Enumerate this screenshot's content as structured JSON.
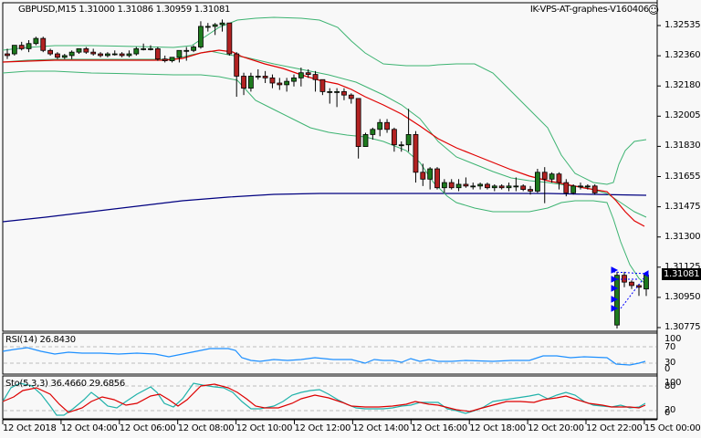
{
  "header": {
    "symbol_line": "GBPUSD,M15  1.31000 1.31086 1.30959 1.31081",
    "server_label": "IK-VPS-AT-graphes-V160406",
    "smiley_icon": "☺"
  },
  "price_axis": {
    "ticks": [
      "1.32535",
      "1.32360",
      "1.32180",
      "1.32005",
      "1.31830",
      "1.31655",
      "1.31475",
      "1.31300",
      "1.31125",
      "1.30950",
      "1.30775"
    ],
    "current_price": "1.31081"
  },
  "rsi": {
    "label": "RSI(14) 26.8430",
    "ticks": [
      "100",
      "70",
      "30",
      "0"
    ]
  },
  "stoch": {
    "label": "Sto(5,3,3) 36.4660 29.6856",
    "ticks": [
      "100",
      "80",
      "20",
      "0"
    ]
  },
  "time_axis": {
    "ticks": [
      "12 Oct 2018",
      "12 Oct 04:00",
      "12 Oct 06:00",
      "12 Oct 08:00",
      "12 Oct 10:00",
      "12 Oct 12:00",
      "12 Oct 14:00",
      "12 Oct 16:00",
      "12 Oct 18:00",
      "12 Oct 20:00",
      "12 Oct 22:00",
      "15 Oct 00:00"
    ]
  },
  "colors": {
    "background": "#f8f8f8",
    "bull": "#1e7a1e",
    "bear": "#b22222",
    "ma_fast": "#e00000",
    "bollinger": "#3cb371",
    "ma_slow": "#000080",
    "rsi_line": "#1e90ff",
    "stoch_main": "#20b2aa",
    "stoch_signal": "#dd0000",
    "fibo_marks": "#0000ff"
  },
  "chart_data": {
    "type": "candlestick",
    "title": "GBPUSD,M15",
    "ohlc_last": {
      "open": 1.31,
      "high": 1.31086,
      "low": 1.30959,
      "close": 1.31081
    },
    "ylim": [
      1.3074,
      1.3264
    ],
    "candles": [
      [
        1.3237,
        1.324,
        1.3234,
        1.3236
      ],
      [
        1.3237,
        1.3242,
        1.3236,
        1.3242
      ],
      [
        1.3242,
        1.3244,
        1.3239,
        1.324
      ],
      [
        1.324,
        1.3245,
        1.3238,
        1.3243
      ],
      [
        1.3243,
        1.3247,
        1.3242,
        1.3246
      ],
      [
        1.3246,
        1.3247,
        1.3238,
        1.3239
      ],
      [
        1.3239,
        1.324,
        1.3236,
        1.3237
      ],
      [
        1.3237,
        1.3238,
        1.3234,
        1.3235
      ],
      [
        1.3235,
        1.3237,
        1.3234,
        1.3236
      ],
      [
        1.3236,
        1.3239,
        1.3234,
        1.3238
      ],
      [
        1.3238,
        1.324,
        1.3237,
        1.324
      ],
      [
        1.324,
        1.3241,
        1.3237,
        1.3238
      ],
      [
        1.3238,
        1.324,
        1.3236,
        1.3237
      ],
      [
        1.3237,
        1.3238,
        1.3235,
        1.3236
      ],
      [
        1.3236,
        1.3238,
        1.3235,
        1.3237
      ],
      [
        1.3237,
        1.3239,
        1.3236,
        1.3237
      ],
      [
        1.3237,
        1.3238,
        1.3235,
        1.3236
      ],
      [
        1.3236,
        1.3239,
        1.3235,
        1.3237
      ],
      [
        1.3237,
        1.3241,
        1.3236,
        1.324
      ],
      [
        1.324,
        1.3243,
        1.3239,
        1.324
      ],
      [
        1.324,
        1.3242,
        1.3239,
        1.324
      ],
      [
        1.324,
        1.3241,
        1.3233,
        1.3234
      ],
      [
        1.3234,
        1.3236,
        1.3232,
        1.3233
      ],
      [
        1.3233,
        1.3235,
        1.3232,
        1.3235
      ],
      [
        1.3235,
        1.3239,
        1.3232,
        1.3239
      ],
      [
        1.3239,
        1.3241,
        1.3233,
        1.3239
      ],
      [
        1.3239,
        1.3242,
        1.3238,
        1.3241
      ],
      [
        1.3241,
        1.3256,
        1.324,
        1.3253
      ],
      [
        1.3253,
        1.3255,
        1.325,
        1.3253
      ],
      [
        1.3253,
        1.3255,
        1.3248,
        1.3254
      ],
      [
        1.3254,
        1.3257,
        1.325,
        1.3255
      ],
      [
        1.3255,
        1.3255,
        1.3236,
        1.3237
      ],
      [
        1.3237,
        1.3238,
        1.3212,
        1.3224
      ],
      [
        1.3224,
        1.3226,
        1.3213,
        1.3217
      ],
      [
        1.3217,
        1.3226,
        1.3215,
        1.3224
      ],
      [
        1.3224,
        1.3228,
        1.3222,
        1.3224
      ],
      [
        1.3224,
        1.3227,
        1.322,
        1.3223
      ],
      [
        1.3223,
        1.3225,
        1.3217,
        1.322
      ],
      [
        1.322,
        1.3223,
        1.3216,
        1.3219
      ],
      [
        1.3219,
        1.3223,
        1.3215,
        1.3221
      ],
      [
        1.3221,
        1.3225,
        1.3218,
        1.3223
      ],
      [
        1.3223,
        1.3229,
        1.3218,
        1.3226
      ],
      [
        1.3226,
        1.3228,
        1.3223,
        1.3225
      ],
      [
        1.3225,
        1.3227,
        1.3215,
        1.3222
      ],
      [
        1.3222,
        1.3222,
        1.3213,
        1.3215
      ],
      [
        1.3215,
        1.3217,
        1.3208,
        1.3215
      ],
      [
        1.3215,
        1.3217,
        1.3206,
        1.3215
      ],
      [
        1.3215,
        1.3217,
        1.321,
        1.3213
      ],
      [
        1.3213,
        1.3214,
        1.3208,
        1.3211
      ],
      [
        1.3211,
        1.3211,
        1.3176,
        1.3183
      ],
      [
        1.3183,
        1.3191,
        1.3183,
        1.319
      ],
      [
        1.319,
        1.3194,
        1.3187,
        1.3193
      ],
      [
        1.3193,
        1.3199,
        1.3189,
        1.3197
      ],
      [
        1.3197,
        1.3199,
        1.3191,
        1.3193
      ],
      [
        1.3193,
        1.3194,
        1.318,
        1.3184
      ],
      [
        1.3184,
        1.3186,
        1.318,
        1.3184
      ],
      [
        1.3184,
        1.3205,
        1.318,
        1.319
      ],
      [
        1.319,
        1.3192,
        1.3162,
        1.3168
      ],
      [
        1.3168,
        1.3173,
        1.316,
        1.3164
      ],
      [
        1.3164,
        1.3171,
        1.3158,
        1.317
      ],
      [
        1.317,
        1.3171,
        1.3158,
        1.3159
      ],
      [
        1.3159,
        1.3164,
        1.3156,
        1.3162
      ],
      [
        1.3162,
        1.3164,
        1.3158,
        1.3159
      ],
      [
        1.3159,
        1.3164,
        1.3157,
        1.3161
      ],
      [
        1.3161,
        1.3165,
        1.3159,
        1.316
      ],
      [
        1.316,
        1.3162,
        1.3158,
        1.316
      ],
      [
        1.316,
        1.3162,
        1.3158,
        1.3161
      ],
      [
        1.3161,
        1.3162,
        1.3158,
        1.3159
      ],
      [
        1.3159,
        1.3161,
        1.3157,
        1.316
      ],
      [
        1.316,
        1.3161,
        1.3158,
        1.3159
      ],
      [
        1.3159,
        1.3162,
        1.3157,
        1.316
      ],
      [
        1.316,
        1.3165,
        1.3157,
        1.316
      ],
      [
        1.316,
        1.3161,
        1.3157,
        1.3158
      ],
      [
        1.3158,
        1.316,
        1.3155,
        1.3157
      ],
      [
        1.3157,
        1.317,
        1.3156,
        1.3168
      ],
      [
        1.3168,
        1.3171,
        1.315,
        1.3164
      ],
      [
        1.3164,
        1.3168,
        1.3162,
        1.3167
      ],
      [
        1.3167,
        1.3168,
        1.3158,
        1.3162
      ],
      [
        1.3162,
        1.3164,
        1.3154,
        1.3156
      ],
      [
        1.3156,
        1.3161,
        1.3155,
        1.316
      ],
      [
        1.316,
        1.3162,
        1.3158,
        1.316
      ],
      [
        1.316,
        1.3161,
        1.3158,
        1.316
      ],
      [
        1.316,
        1.3161,
        1.3155,
        1.3156
      ],
      [
        1.3079,
        1.311,
        1.3077,
        1.3108
      ],
      [
        1.3108,
        1.311,
        1.3101,
        1.3104
      ],
      [
        1.3104,
        1.3105,
        1.31,
        1.3102
      ],
      [
        1.3102,
        1.3103,
        1.3096,
        1.3101
      ],
      [
        1.31,
        1.31086,
        1.30959,
        1.31081
      ]
    ]
  }
}
